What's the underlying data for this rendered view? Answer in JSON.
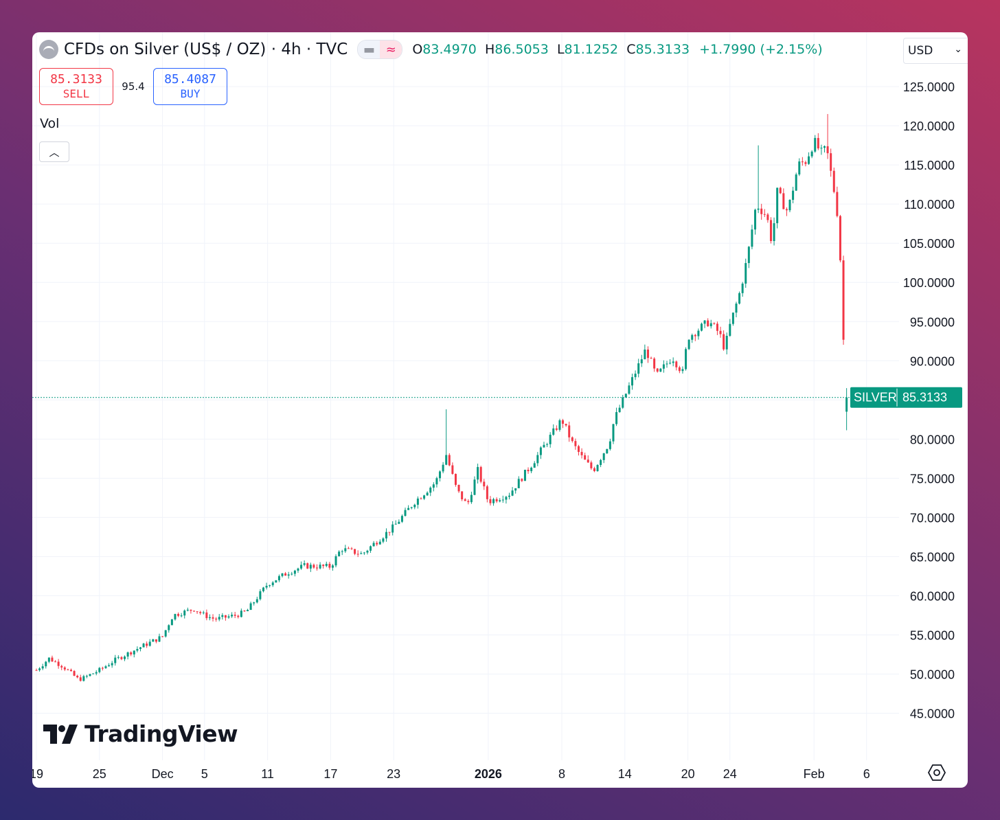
{
  "header": {
    "title": "CFDs on Silver (US$ / OZ) · 4h · TVC",
    "symbol_icon": "silver-bars-icon",
    "open_label": "O",
    "open": "83.4970",
    "high_label": "H",
    "high": "86.5053",
    "low_label": "L",
    "low": "81.1252",
    "close_label": "C",
    "close": "85.3133",
    "change": "+1.7990 (+2.15%)",
    "currency": "USD"
  },
  "trade": {
    "sell_price": "85.3133",
    "sell_label": "SELL",
    "spread": "95.4",
    "buy_price": "85.4087",
    "buy_label": "BUY"
  },
  "volume_label": "Vol",
  "price_badge": {
    "symbol": "SILVER",
    "value": "85.3133"
  },
  "brand": "TradingView",
  "colors": {
    "up": "#089981",
    "down": "#f23645",
    "accent": "#2962ff"
  },
  "chart_data": {
    "type": "candlestick",
    "interval": "4h",
    "y_ticks": [
      "45.0000",
      "50.0000",
      "55.0000",
      "60.0000",
      "65.0000",
      "70.0000",
      "75.0000",
      "80.0000",
      "85.0000",
      "90.0000",
      "95.0000",
      "100.0000",
      "105.0000",
      "110.0000",
      "115.0000",
      "120.0000",
      "125.0000"
    ],
    "y_tick_values": [
      45,
      50,
      55,
      60,
      65,
      70,
      75,
      80,
      85,
      90,
      95,
      100,
      105,
      110,
      115,
      120,
      125
    ],
    "ylim": [
      42.5,
      126.5
    ],
    "x_ticks": [
      {
        "label": "19",
        "day": 0
      },
      {
        "label": "25",
        "day": 6
      },
      {
        "label": "Dec",
        "day": 12
      },
      {
        "label": "5",
        "day": 16
      },
      {
        "label": "11",
        "day": 22
      },
      {
        "label": "17",
        "day": 28
      },
      {
        "label": "23",
        "day": 34
      },
      {
        "label": "2026",
        "day": 43,
        "bold": true
      },
      {
        "label": "8",
        "day": 50
      },
      {
        "label": "14",
        "day": 56
      },
      {
        "label": "20",
        "day": 62
      },
      {
        "label": "24",
        "day": 66
      },
      {
        "label": "Feb",
        "day": 74
      },
      {
        "label": "6",
        "day": 79
      }
    ],
    "anchors": [
      [
        0,
        50.5
      ],
      [
        1.2,
        52.0
      ],
      [
        2.5,
        51.0
      ],
      [
        4.0,
        49.3
      ],
      [
        4.5,
        49.5
      ],
      [
        6.0,
        50.5
      ],
      [
        7.5,
        51.8
      ],
      [
        10.0,
        53.5
      ],
      [
        12.0,
        54.8
      ],
      [
        13.0,
        57.5
      ],
      [
        15.0,
        58.3
      ],
      [
        16.0,
        57.5
      ],
      [
        17.0,
        57.0
      ],
      [
        19.0,
        57.5
      ],
      [
        20.0,
        58.0
      ],
      [
        22.0,
        61.5
      ],
      [
        24.0,
        63.0
      ],
      [
        25.5,
        63.8
      ],
      [
        28.0,
        63.7
      ],
      [
        29.0,
        66.0
      ],
      [
        31.0,
        65.3
      ],
      [
        32.0,
        66.5
      ],
      [
        34.0,
        68.8
      ],
      [
        36.0,
        72.0
      ],
      [
        38.0,
        74.5
      ],
      [
        39.0,
        78.0
      ],
      [
        40.0,
        73.5
      ],
      [
        41.0,
        71.5
      ],
      [
        42.0,
        76.0
      ],
      [
        43.0,
        72.0
      ],
      [
        44.0,
        72.5
      ],
      [
        45.0,
        73.0
      ],
      [
        47.0,
        76.5
      ],
      [
        48.5,
        79.5
      ],
      [
        50.0,
        82.5
      ],
      [
        51.0,
        79.5
      ],
      [
        52.0,
        77.5
      ],
      [
        53.0,
        76.0
      ],
      [
        54.5,
        79.5
      ],
      [
        55.0,
        82.5
      ],
      [
        56.0,
        85.5
      ],
      [
        57.0,
        88.5
      ],
      [
        58.0,
        91.5
      ],
      [
        59.0,
        88.0
      ],
      [
        60.5,
        90.5
      ],
      [
        61.5,
        88.5
      ],
      [
        62.0,
        93.0
      ],
      [
        63.0,
        94.0
      ],
      [
        64.0,
        95.0
      ],
      [
        65.0,
        93.5
      ],
      [
        65.5,
        91.5
      ],
      [
        66.0,
        94.5
      ],
      [
        67.0,
        99.0
      ],
      [
        67.7,
        103.5
      ],
      [
        68.5,
        110.0
      ],
      [
        69.5,
        108.5
      ],
      [
        70.0,
        105.0
      ],
      [
        70.5,
        111.5
      ],
      [
        71.5,
        109.0
      ],
      [
        72.5,
        115.0
      ],
      [
        73.2,
        115.5
      ],
      [
        74.0,
        118.0
      ],
      [
        74.7,
        116.5
      ],
      [
        75.2,
        117.0
      ],
      [
        76.0,
        111.0
      ],
      [
        76.3,
        108.0
      ],
      [
        76.7,
        98.0
      ],
      [
        77.0,
        82.0
      ],
      [
        77.3,
        85.3
      ]
    ],
    "special": [
      {
        "day": 39.0,
        "high": 83.8
      },
      {
        "day": 68.7,
        "high": 117.5
      },
      {
        "day": 75.3,
        "high": 121.5
      },
      {
        "day": 77.0,
        "low": 74.5
      },
      {
        "day": 77.3,
        "open": 83.497,
        "high": 86.5053,
        "low": 81.1252,
        "close": 85.3133
      }
    ]
  }
}
